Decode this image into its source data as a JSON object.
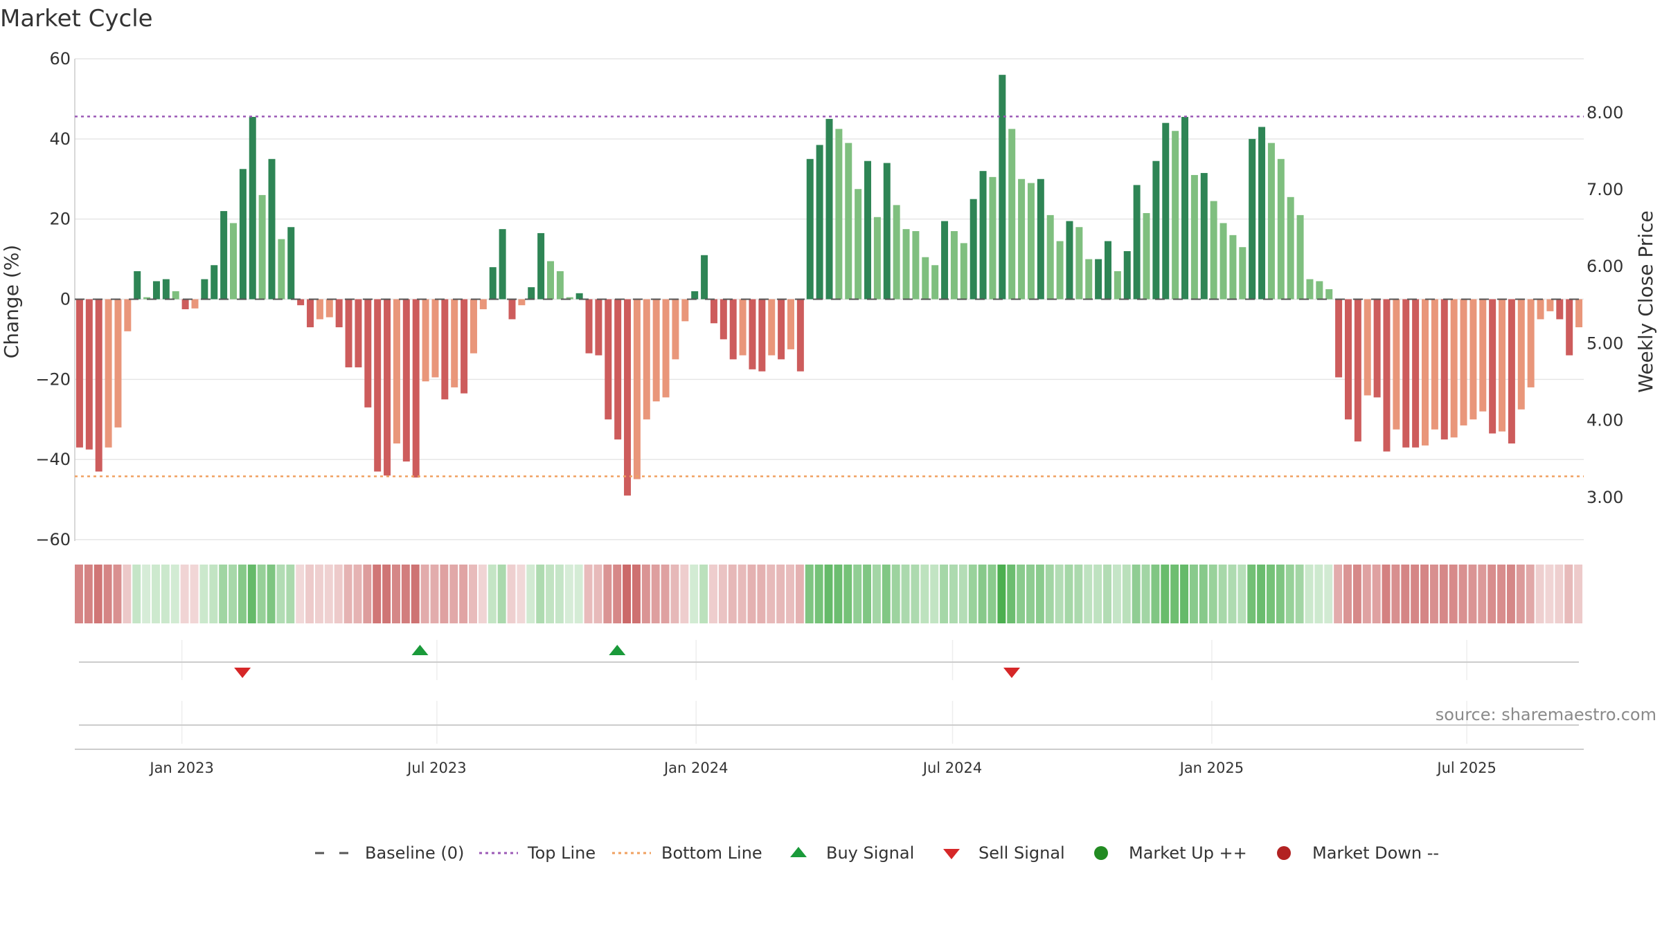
{
  "chart_data": {
    "type": "bar",
    "title": "Market Cycle",
    "ylabel": "Change (%)",
    "y2label": "Weekly Close Price",
    "ylim": [
      -60,
      60
    ],
    "y_ticks": [
      60,
      40,
      20,
      0,
      -20,
      -40,
      -60
    ],
    "y_tick_labels": [
      "60",
      "40",
      "20",
      "0",
      "−20",
      "−40",
      "−60"
    ],
    "y2lim": [
      2.45,
      8.7
    ],
    "y2_ticks": [
      8.0,
      7.0,
      6.0,
      5.0,
      4.0,
      3.0
    ],
    "y2_tick_labels": [
      "8.00",
      "7.00",
      "6.00",
      "5.00",
      "4.00",
      "3.00"
    ],
    "x_range": [
      "2022-10-17",
      "2025-09-22"
    ],
    "x_ticks": [
      "2023-01-01",
      "2023-07-01",
      "2024-01-01",
      "2024-07-01",
      "2025-01-01",
      "2025-07-01"
    ],
    "x_tick_labels": [
      "Jan 2023",
      "Jul 2023",
      "Jan 2024",
      "Jul 2024",
      "Jan 2025",
      "Jul 2025"
    ],
    "reference_lines": {
      "baseline": 0,
      "top_line": 45.6,
      "bottom_line": -44.2
    },
    "start_week": "2022-10-17",
    "week_step_days": 7,
    "values": [
      -37,
      -37.5,
      -43,
      -37,
      -32,
      -8,
      7,
      0.5,
      4.5,
      5,
      2,
      -2.5,
      -2.3,
      5,
      8.5,
      22,
      19,
      32.5,
      45.5,
      26,
      35,
      15,
      18,
      -1.5,
      -7,
      -5,
      -4.5,
      -7,
      -17,
      -17,
      -27,
      -43,
      -44,
      -36,
      -40.5,
      -44.5,
      -20.5,
      -19.5,
      -25,
      -22,
      -23.5,
      -13.5,
      -2.5,
      8,
      17.5,
      -5,
      -1.5,
      3,
      16.5,
      9.5,
      7,
      0.5,
      1.5,
      -13.5,
      -14,
      -30,
      -35,
      -49,
      -44.9,
      -30,
      -25.5,
      -24.5,
      -15,
      -5.5,
      2,
      11,
      -6,
      -10,
      -15,
      -14,
      -17.5,
      -18,
      -14,
      -15,
      -12.5,
      -18,
      35,
      38.5,
      45,
      42.5,
      39,
      27.5,
      34.5,
      20.5,
      34,
      23.5,
      17.5,
      17,
      10.5,
      8.5,
      19.5,
      17,
      14,
      25,
      32,
      30.5,
      56,
      42.5,
      30,
      29,
      30,
      21,
      14.5,
      19.5,
      18,
      10,
      10,
      14.5,
      7,
      12,
      28.5,
      21.5,
      34.5,
      44,
      42,
      45.5,
      31,
      31.5,
      24.5,
      19,
      16,
      13,
      40,
      43,
      39,
      35,
      25.5,
      21,
      5,
      4.5,
      2.5,
      -19.5,
      -30,
      -35.5,
      -24,
      -24.5,
      -38,
      -32.5,
      -37,
      -37,
      -36.5,
      -32.5,
      -35,
      -34.5,
      -31.5,
      -30,
      -28,
      -33.5,
      -33,
      -36,
      -27.5,
      -22,
      -5,
      -3,
      -5,
      -14,
      -7
    ],
    "signals": {
      "sell": [
        "2023-02-13",
        "2024-08-12"
      ],
      "buy": [
        "2023-06-19",
        "2023-11-06"
      ]
    },
    "legend": {
      "baseline": "Baseline (0)",
      "top_line": "Top Line",
      "bottom_line": "Bottom Line",
      "buy": "Buy Signal",
      "sell": "Sell Signal",
      "up": "Market Up ++",
      "down": "Market Down --"
    },
    "source": "source: sharemaestro.com",
    "colors": {
      "up_strong": "#2e8555",
      "up_weak": "#7fbf7f",
      "down_strong": "#cd5c5c",
      "down_weak": "#e9967a",
      "top_line": "#9b59b6",
      "bottom_line": "#f0a060",
      "baseline": "#555555",
      "buy": "#1a9a3a",
      "sell": "#d62728",
      "up_dot": "#228b22",
      "down_dot": "#b22222",
      "grid": "#e6e6e6",
      "heat_up": "#4caf50",
      "heat_down": "#c65a5a"
    }
  }
}
